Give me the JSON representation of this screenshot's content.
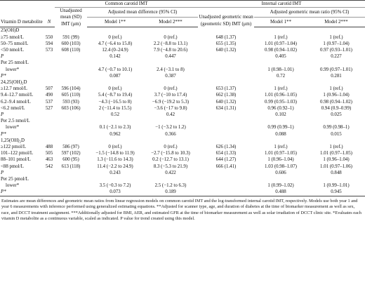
{
  "header": {
    "group_cca": "Common carotid IMT",
    "group_ica": "Internal carotid IMT",
    "col_metabolite": "Vitamin D metabolite",
    "col_n": "N",
    "col_unadj_mean": "Unadjusted mean (SD) IMT (μm)",
    "col_adj_diff": "Adjusted mean difference (95% CI)",
    "col_unadj_geo": "Unadjusted geometric mean (geometric SD) IMT (μm)",
    "col_adj_ratio": "Adjusted geometric mean ratio (95% CI)",
    "model1": "Model 1**",
    "model2": "Model 2***"
  },
  "rows": [
    {
      "kind": "section",
      "label": "25(OH)D"
    },
    {
      "label": "≥75 nmol/L",
      "n": "550",
      "mean": "591 (99)",
      "m1": "0 (ref.)",
      "m2": "0 (ref.)",
      "geo": "648 (1.37)",
      "r1": "1 (ref.)",
      "r2": "1 (ref.)"
    },
    {
      "label": "50–75 nmol/L",
      "n": "594",
      "mean": "600 (103)",
      "m1": "4.7 (−6.4 to 15.8)",
      "m2": "2.2 (−8.8 to 13.1)",
      "geo": "655 (1.35)",
      "r1": "1.01 (0.97–1.04)",
      "r2": "1 (0.97–1.04)"
    },
    {
      "label": "<50 nmol/L",
      "n": "573",
      "mean": "608 (110)",
      "m1": "12.4 (0–24.9)",
      "m2": "7.9 (−4.8 to 20.6)",
      "geo": "640 (1.32)",
      "r1": "0.98 (0.94–1.02)",
      "r2": "0.97 (0.93–1.01)"
    },
    {
      "label": "P",
      "italic": true,
      "n": "",
      "mean": "",
      "m1": "0.142",
      "m2": "0.447",
      "geo": "",
      "r1": "0.405",
      "r2": "0.227"
    },
    {
      "label": "Per 25 nmol/L",
      "n": "",
      "mean": "",
      "m1": "",
      "m2": "",
      "geo": "",
      "r1": "",
      "r2": ""
    },
    {
      "label": "lower*",
      "sub": true,
      "n": "",
      "mean": "",
      "m1": "4.7 (−0.7 to 10.1)",
      "m2": "2.4 (−3.1 to 8)",
      "geo": "",
      "r1": "1 (0.98–1.01)",
      "r2": "0.99 (0.97–1.01)"
    },
    {
      "label": "P*",
      "italic": true,
      "n": "",
      "mean": "",
      "m1": "0.087",
      "m2": "0.387",
      "geo": "",
      "r1": "0.72",
      "r2": "0.281"
    },
    {
      "kind": "section",
      "label": "24,25(OH)₂D"
    },
    {
      "label": "≥12.7 nmol/L",
      "n": "507",
      "mean": "596 (104)",
      "m1": "0 (ref.)",
      "m2": "0 (ref.)",
      "geo": "653 (1.37)",
      "r1": "1 (ref.)",
      "r2": "1 (ref.)"
    },
    {
      "label": "9.4–12.7 nmol/L",
      "n": "490",
      "mean": "605 (110)",
      "m1": "5.4 (−8.7 to 19.4)",
      "m2": "3.7 (−10 to 17.4)",
      "geo": "662 (1.38)",
      "r1": "1.01 (0.96–1.05)",
      "r2": "1 (0.96–1.04)"
    },
    {
      "label": "6.2–9.4 nmol/L",
      "n": "537",
      "mean": "593 (93)",
      "m1": "−4.3 (−16.5 to 8)",
      "m2": "−6.9 (−19.2 to 5.3)",
      "geo": "640 (1.32)",
      "r1": "0.99 (0.95–1.03)",
      "r2": "0.98 (0.94–1.02)"
    },
    {
      "label": "<6.2 nmol/L",
      "n": "527",
      "mean": "603 (106)",
      "m1": "2 (−11.4 to 15.5)",
      "m2": "−3.6 (−17 to 9.8)",
      "geo": "634 (1.31)",
      "r1": "0.96 (0.92–1)",
      "r2": "0.94 (0.9–0.99)"
    },
    {
      "label": "P",
      "italic": true,
      "n": "",
      "mean": "",
      "m1": "0.52",
      "m2": "0.42",
      "geo": "",
      "r1": "0.102",
      "r2": "0.025"
    },
    {
      "label": "Per 2.5 nmol/L",
      "n": "",
      "mean": "",
      "m1": "",
      "m2": "",
      "geo": "",
      "r1": "",
      "r2": ""
    },
    {
      "label": "lower*",
      "sub": true,
      "n": "",
      "mean": "",
      "m1": "0.1 (−2.1 to 2.3)",
      "m2": "−1 (−3.2 to 1.2)",
      "geo": "",
      "r1": "0.99 (0.99–1)",
      "r2": "0.99 (0.98–1)"
    },
    {
      "label": "P*",
      "italic": true,
      "n": "",
      "mean": "",
      "m1": "0.962",
      "m2": "0.366",
      "geo": "",
      "r1": "0.088",
      "r2": "0.015"
    },
    {
      "kind": "section",
      "label": "1,25(OH)₂D"
    },
    {
      "label": "≥122 pmol/L",
      "n": "488",
      "mean": "586 (97)",
      "m1": "0 (ref.)",
      "m2": "0 (ref.)",
      "geo": "626 (1.34)",
      "r1": "1 (ref.)",
      "r2": "1 (ref.)"
    },
    {
      "label": "101–122 pmol/L",
      "n": "505",
      "mean": "597 (102)",
      "m1": "−1.5 (−14.8 to 11.9)",
      "m2": "−2.7 (−15.8 to 10.3)",
      "geo": "654 (1.33)",
      "r1": "1.01 (0.97–1.05)",
      "r2": "1.01 (0.97–1.05)"
    },
    {
      "label": "88–101 pmol/L",
      "n": "463",
      "mean": "600 (95)",
      "m1": "1.3 (−11.6 to 14.3)",
      "m2": "0.2 (−12.7 to 13.1)",
      "geo": "644 (1.27)",
      "r1": "1 (0.96–1.04)",
      "r2": "1 (0.96–1.04)"
    },
    {
      "label": "<88 pmol/L",
      "n": "542",
      "mean": "613 (118)",
      "m1": "11.4 (−2.2 to 24.9)",
      "m2": "8.3 (−5.3 to 21.9)",
      "geo": "666 (1.41)",
      "r1": "1.03 (0.98–1.07)",
      "r2": "1.01 (0.97–1.06)"
    },
    {
      "label": "P",
      "italic": true,
      "n": "",
      "mean": "",
      "m1": "0.243",
      "m2": "0.422",
      "geo": "",
      "r1": "0.606",
      "r2": "0.848"
    },
    {
      "label": "Per 25 pmol/L",
      "n": "",
      "mean": "",
      "m1": "",
      "m2": "",
      "geo": "",
      "r1": "",
      "r2": ""
    },
    {
      "label": "lower*",
      "sub": true,
      "n": "",
      "mean": "",
      "m1": "3.5 (−0.3 to 7.2)",
      "m2": "2.5 (−1.2 to 6.3)",
      "geo": "",
      "r1": "1 (0.99–1.02)",
      "r2": "1 (0.99–1.01)"
    },
    {
      "label": "P*",
      "italic": true,
      "n": "",
      "mean": "",
      "m1": "0.073",
      "m2": "0.189",
      "geo": "",
      "r1": "0.488",
      "r2": "0.945"
    }
  ],
  "footnote": "Estimates are mean differences and geometric mean ratios from linear regression models on common carotid IMT and the log-transformed internal carotid IMT, respectively. Models use both year 1 and year 6 measurements with inference performed using generalized estimating equations. **Adjusted for scanner type, age, and duration of diabetes at the time of biomarker measurement as well as sex, race, and DCCT treatment assignment. ***Additionally adjusted for BMI, AER, and estimated GFR at the time of biomarker measurement as well as solar irradiation of DCCT clinic site. *Evaluates each vitamin D metabolite as a continuous variable, scaled as indicated. P value for trend created using this model."
}
